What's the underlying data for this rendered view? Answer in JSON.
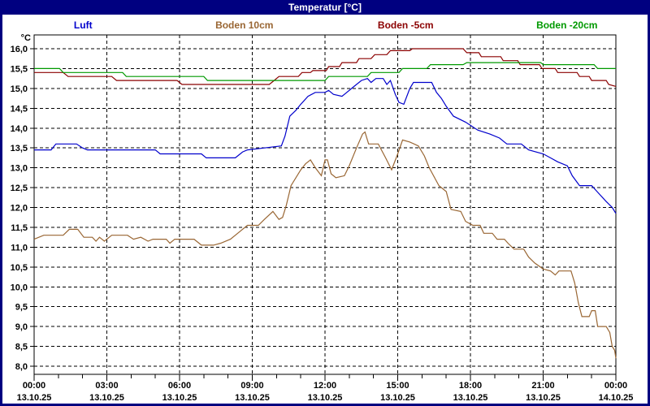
{
  "window": {
    "title": "Temperatur [°C]"
  },
  "chart_data": {
    "type": "line",
    "title": "Temperatur [°C]",
    "grid": {
      "style": "dashed",
      "color": "#000000"
    },
    "legend_position": "top",
    "y_axis": {
      "unit": "°C",
      "decimal_separator": ",",
      "tick_values": [
        16.0,
        15.5,
        15.0,
        14.5,
        14.0,
        13.5,
        13.0,
        12.5,
        12.0,
        11.5,
        11.0,
        10.5,
        10.0,
        9.5,
        9.0,
        8.5,
        8.0
      ],
      "tick_labels": [
        "16,0",
        "15,5",
        "15,0",
        "14,5",
        "14,0",
        "13,5",
        "13,0",
        "12,5",
        "12,0",
        "11,5",
        "11,0",
        "10,5",
        "10,0",
        "9,5",
        "9,0",
        "8,5",
        "8,0"
      ],
      "visible_range": [
        7.8,
        16.35
      ]
    },
    "x_axis": {
      "range_hours": [
        0,
        24
      ],
      "minor_tick_interval_hours": 1,
      "major_ticks": [
        {
          "hour": 0,
          "time": "00:00",
          "date": "13.10.25"
        },
        {
          "hour": 3,
          "time": "03:00",
          "date": "13.10.25"
        },
        {
          "hour": 6,
          "time": "06:00",
          "date": "13.10.25"
        },
        {
          "hour": 9,
          "time": "09:00",
          "date": "13.10.25"
        },
        {
          "hour": 12,
          "time": "12:00",
          "date": "13.10.25"
        },
        {
          "hour": 15,
          "time": "15:00",
          "date": "13.10.25"
        },
        {
          "hour": 18,
          "time": "18:00",
          "date": "13.10.25"
        },
        {
          "hour": 21,
          "time": "21:00",
          "date": "13.10.25"
        },
        {
          "hour": 24,
          "time": "00:00",
          "date": "14.10.25"
        }
      ]
    },
    "series": [
      {
        "name": "Luft",
        "color": "#0000CC",
        "points": [
          [
            0,
            13.45
          ],
          [
            0.7,
            13.45
          ],
          [
            0.9,
            13.6
          ],
          [
            1.75,
            13.6
          ],
          [
            2.0,
            13.5
          ],
          [
            2.2,
            13.45
          ],
          [
            5.0,
            13.45
          ],
          [
            5.2,
            13.35
          ],
          [
            6.9,
            13.35
          ],
          [
            7.1,
            13.25
          ],
          [
            8.3,
            13.25
          ],
          [
            8.6,
            13.4
          ],
          [
            8.8,
            13.45
          ],
          [
            9.5,
            13.5
          ],
          [
            10.2,
            13.55
          ],
          [
            10.35,
            13.8
          ],
          [
            10.55,
            14.3
          ],
          [
            10.8,
            14.45
          ],
          [
            11.0,
            14.6
          ],
          [
            11.3,
            14.8
          ],
          [
            11.6,
            14.9
          ],
          [
            12.0,
            14.9
          ],
          [
            12.15,
            14.95
          ],
          [
            12.35,
            14.85
          ],
          [
            12.7,
            14.8
          ],
          [
            12.9,
            14.9
          ],
          [
            13.2,
            15.05
          ],
          [
            13.5,
            15.2
          ],
          [
            13.75,
            15.25
          ],
          [
            13.9,
            15.15
          ],
          [
            14.1,
            15.25
          ],
          [
            14.4,
            15.25
          ],
          [
            14.55,
            15.1
          ],
          [
            14.7,
            15.2
          ],
          [
            14.9,
            14.85
          ],
          [
            15.05,
            14.65
          ],
          [
            15.25,
            14.6
          ],
          [
            15.5,
            15.0
          ],
          [
            15.65,
            15.15
          ],
          [
            16.4,
            15.15
          ],
          [
            16.6,
            14.9
          ],
          [
            16.8,
            14.75
          ],
          [
            17.0,
            14.55
          ],
          [
            17.3,
            14.3
          ],
          [
            17.8,
            14.15
          ],
          [
            18.3,
            13.95
          ],
          [
            18.8,
            13.85
          ],
          [
            19.2,
            13.75
          ],
          [
            19.5,
            13.6
          ],
          [
            20.1,
            13.6
          ],
          [
            20.4,
            13.45
          ],
          [
            21.0,
            13.35
          ],
          [
            21.3,
            13.25
          ],
          [
            21.6,
            13.15
          ],
          [
            22.0,
            13.05
          ],
          [
            22.2,
            12.8
          ],
          [
            22.5,
            12.55
          ],
          [
            23.0,
            12.55
          ],
          [
            23.3,
            12.35
          ],
          [
            23.6,
            12.15
          ],
          [
            23.85,
            12.0
          ],
          [
            24,
            11.85
          ]
        ]
      },
      {
        "name": "Boden 10cm",
        "color": "#996633",
        "points": [
          [
            0,
            11.2
          ],
          [
            0.4,
            11.3
          ],
          [
            1.2,
            11.3
          ],
          [
            1.45,
            11.45
          ],
          [
            1.8,
            11.45
          ],
          [
            2.05,
            11.25
          ],
          [
            2.4,
            11.25
          ],
          [
            2.55,
            11.15
          ],
          [
            2.7,
            11.25
          ],
          [
            2.9,
            11.15
          ],
          [
            3.2,
            11.3
          ],
          [
            3.85,
            11.3
          ],
          [
            4.1,
            11.2
          ],
          [
            4.4,
            11.25
          ],
          [
            4.7,
            11.15
          ],
          [
            4.9,
            11.2
          ],
          [
            5.45,
            11.2
          ],
          [
            5.6,
            11.1
          ],
          [
            5.8,
            11.2
          ],
          [
            6.6,
            11.2
          ],
          [
            6.9,
            11.05
          ],
          [
            7.4,
            11.05
          ],
          [
            7.7,
            11.1
          ],
          [
            8.1,
            11.2
          ],
          [
            8.5,
            11.4
          ],
          [
            8.8,
            11.55
          ],
          [
            9.25,
            11.55
          ],
          [
            9.5,
            11.7
          ],
          [
            9.85,
            11.9
          ],
          [
            10.1,
            11.7
          ],
          [
            10.25,
            11.75
          ],
          [
            10.4,
            12.05
          ],
          [
            10.6,
            12.55
          ],
          [
            11.0,
            12.95
          ],
          [
            11.2,
            13.1
          ],
          [
            11.4,
            13.2
          ],
          [
            11.6,
            13.0
          ],
          [
            11.85,
            12.8
          ],
          [
            12.0,
            13.2
          ],
          [
            12.1,
            13.2
          ],
          [
            12.25,
            12.85
          ],
          [
            12.45,
            12.75
          ],
          [
            12.8,
            12.8
          ],
          [
            13.0,
            13.05
          ],
          [
            13.3,
            13.5
          ],
          [
            13.55,
            13.85
          ],
          [
            13.65,
            13.9
          ],
          [
            13.8,
            13.6
          ],
          [
            14.2,
            13.6
          ],
          [
            14.5,
            13.25
          ],
          [
            14.75,
            12.95
          ],
          [
            15.0,
            13.35
          ],
          [
            15.2,
            13.7
          ],
          [
            15.5,
            13.65
          ],
          [
            15.85,
            13.55
          ],
          [
            16.1,
            13.3
          ],
          [
            16.3,
            13.0
          ],
          [
            16.7,
            12.55
          ],
          [
            17.0,
            12.4
          ],
          [
            17.2,
            11.95
          ],
          [
            17.6,
            11.9
          ],
          [
            17.8,
            11.65
          ],
          [
            18.1,
            11.55
          ],
          [
            18.4,
            11.55
          ],
          [
            18.55,
            11.35
          ],
          [
            18.9,
            11.35
          ],
          [
            19.1,
            11.2
          ],
          [
            19.4,
            11.2
          ],
          [
            19.55,
            11.1
          ],
          [
            19.8,
            10.95
          ],
          [
            20.2,
            10.95
          ],
          [
            20.4,
            10.75
          ],
          [
            20.65,
            10.6
          ],
          [
            21.0,
            10.45
          ],
          [
            21.3,
            10.4
          ],
          [
            21.5,
            10.3
          ],
          [
            21.65,
            10.4
          ],
          [
            22.15,
            10.4
          ],
          [
            22.3,
            10.1
          ],
          [
            22.45,
            9.6
          ],
          [
            22.6,
            9.25
          ],
          [
            22.9,
            9.25
          ],
          [
            23.0,
            9.4
          ],
          [
            23.15,
            9.4
          ],
          [
            23.25,
            9.0
          ],
          [
            23.6,
            9.0
          ],
          [
            23.75,
            8.85
          ],
          [
            23.85,
            8.5
          ],
          [
            23.95,
            8.4
          ],
          [
            24,
            8.2
          ]
        ]
      },
      {
        "name": "Boden -5cm",
        "color": "#8B0000",
        "points": [
          [
            0,
            15.4
          ],
          [
            1.2,
            15.4
          ],
          [
            1.4,
            15.3
          ],
          [
            3.2,
            15.3
          ],
          [
            3.4,
            15.2
          ],
          [
            5.9,
            15.2
          ],
          [
            6.1,
            15.1
          ],
          [
            9.7,
            15.1
          ],
          [
            9.9,
            15.2
          ],
          [
            10.1,
            15.3
          ],
          [
            10.9,
            15.3
          ],
          [
            11.05,
            15.4
          ],
          [
            11.4,
            15.4
          ],
          [
            11.5,
            15.45
          ],
          [
            12.05,
            15.45
          ],
          [
            12.15,
            15.55
          ],
          [
            12.6,
            15.55
          ],
          [
            12.7,
            15.65
          ],
          [
            13.3,
            15.65
          ],
          [
            13.4,
            15.75
          ],
          [
            13.9,
            15.75
          ],
          [
            14.05,
            15.85
          ],
          [
            14.55,
            15.85
          ],
          [
            14.7,
            15.95
          ],
          [
            15.5,
            15.95
          ],
          [
            15.6,
            16.0
          ],
          [
            17.7,
            16.0
          ],
          [
            17.85,
            15.9
          ],
          [
            18.35,
            15.9
          ],
          [
            18.45,
            15.8
          ],
          [
            19.25,
            15.8
          ],
          [
            19.35,
            15.7
          ],
          [
            19.95,
            15.7
          ],
          [
            20.05,
            15.6
          ],
          [
            20.85,
            15.6
          ],
          [
            20.95,
            15.5
          ],
          [
            21.5,
            15.5
          ],
          [
            21.6,
            15.4
          ],
          [
            22.4,
            15.4
          ],
          [
            22.5,
            15.3
          ],
          [
            22.9,
            15.3
          ],
          [
            23.0,
            15.2
          ],
          [
            23.6,
            15.2
          ],
          [
            23.7,
            15.1
          ],
          [
            24,
            15.05
          ]
        ]
      },
      {
        "name": "Boden -20cm",
        "color": "#009900",
        "points": [
          [
            0,
            15.5
          ],
          [
            1.05,
            15.5
          ],
          [
            1.2,
            15.4
          ],
          [
            3.65,
            15.4
          ],
          [
            3.8,
            15.3
          ],
          [
            7.0,
            15.3
          ],
          [
            7.15,
            15.2
          ],
          [
            12.0,
            15.2
          ],
          [
            12.15,
            15.3
          ],
          [
            13.75,
            15.3
          ],
          [
            13.9,
            15.4
          ],
          [
            15.05,
            15.4
          ],
          [
            15.2,
            15.5
          ],
          [
            16.2,
            15.5
          ],
          [
            16.35,
            15.6
          ],
          [
            17.7,
            15.6
          ],
          [
            17.85,
            15.65
          ],
          [
            20.9,
            15.65
          ],
          [
            21.0,
            15.6
          ],
          [
            23.1,
            15.6
          ],
          [
            23.25,
            15.5
          ],
          [
            24,
            15.5
          ]
        ]
      }
    ]
  }
}
